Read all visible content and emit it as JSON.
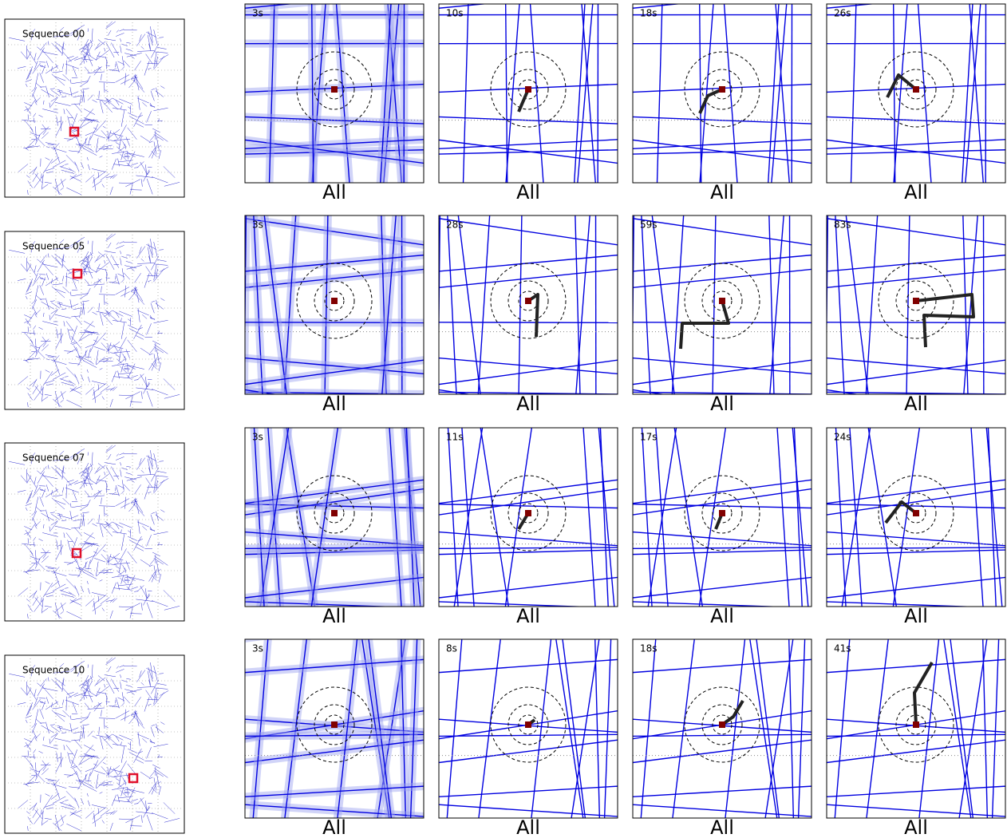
{
  "rows": [
    {
      "sequence": "Sequence 00",
      "panels": [
        {
          "time": "3s",
          "caption": "All"
        },
        {
          "time": "10s",
          "caption": "All"
        },
        {
          "time": "18s",
          "caption": "All"
        },
        {
          "time": "26s",
          "caption": "All"
        }
      ]
    },
    {
      "sequence": "Sequence 05",
      "panels": [
        {
          "time": "3s",
          "caption": "All"
        },
        {
          "time": "28s",
          "caption": "All"
        },
        {
          "time": "59s",
          "caption": "All"
        },
        {
          "time": "83s",
          "caption": "All"
        }
      ]
    },
    {
      "sequence": "Sequence 07",
      "panels": [
        {
          "time": "3s",
          "caption": "All"
        },
        {
          "time": "11s",
          "caption": "All"
        },
        {
          "time": "17s",
          "caption": "All"
        },
        {
          "time": "24s",
          "caption": "All"
        }
      ]
    },
    {
      "sequence": "Sequence 10",
      "panels": [
        {
          "time": "3s",
          "caption": "All"
        },
        {
          "time": "8s",
          "caption": "All"
        },
        {
          "time": "18s",
          "caption": "All"
        },
        {
          "time": "41s",
          "caption": "All"
        }
      ]
    }
  ]
}
